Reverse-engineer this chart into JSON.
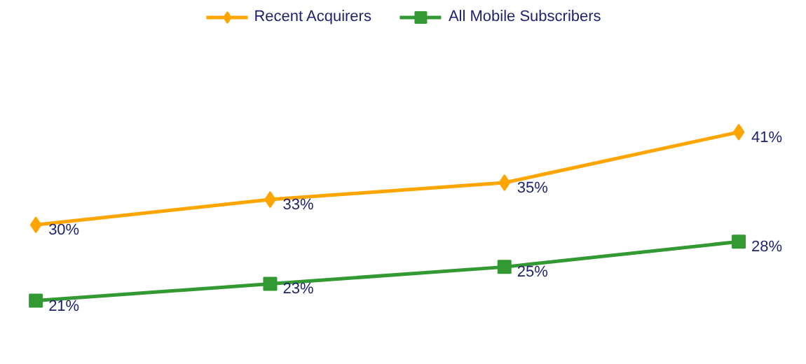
{
  "chart_data": {
    "type": "line",
    "categories": [
      null,
      null,
      null,
      null
    ],
    "legend": "top",
    "grid": false,
    "line_style": "solid",
    "series": [
      {
        "name": "Recent Acquirers",
        "color": "#ffa500",
        "marker": "diamond",
        "values": [
          30,
          33,
          35,
          41
        ],
        "value_labels": [
          "30%",
          "33%",
          "35%",
          "41%"
        ]
      },
      {
        "name": "All Mobile Subscribers",
        "color": "#339933",
        "marker": "square",
        "values": [
          21,
          23,
          25,
          28
        ],
        "value_labels": [
          "21%",
          "23%",
          "25%",
          "28%"
        ]
      }
    ]
  }
}
